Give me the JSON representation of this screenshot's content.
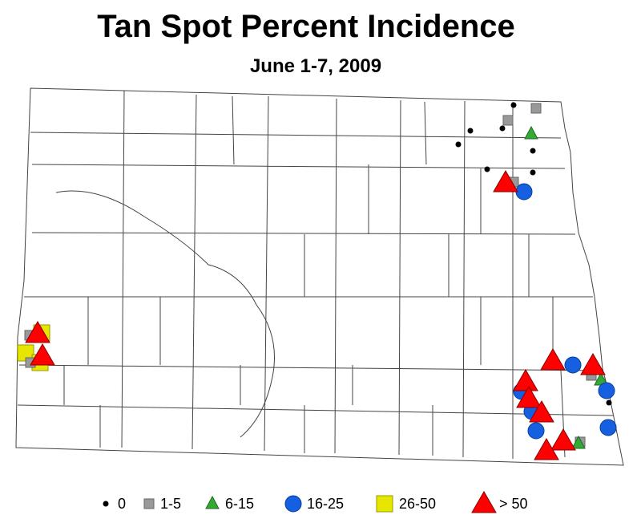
{
  "header": {
    "title": "Tan Spot Percent Incidence",
    "subtitle": "June 1-7, 2009"
  },
  "legend": {
    "items": [
      {
        "label": "0"
      },
      {
        "label": "1-5"
      },
      {
        "label": "6-15"
      },
      {
        "label": "16-25"
      },
      {
        "label": "26-50"
      },
      {
        "label": "> 50"
      }
    ]
  }
}
